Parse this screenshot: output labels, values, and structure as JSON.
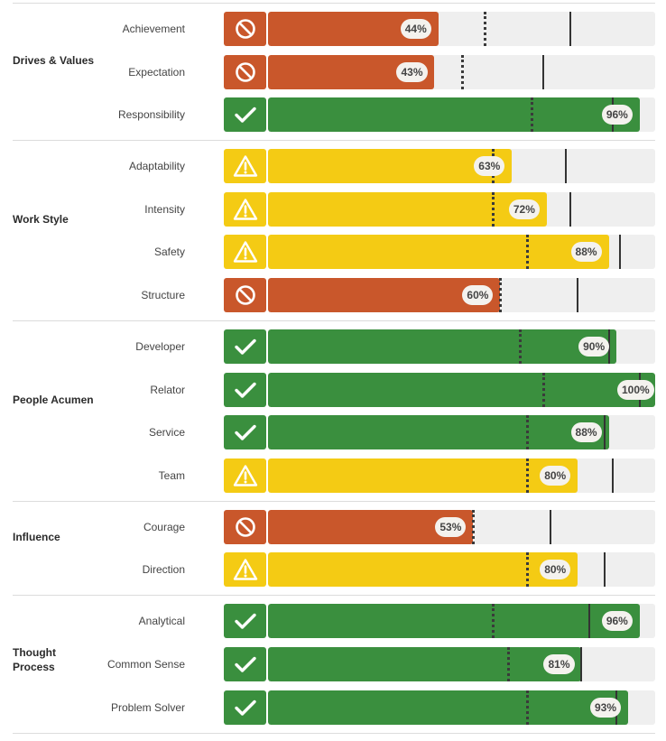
{
  "colors": {
    "fail": "#c9572b",
    "caution": "#f4cb14",
    "pass": "#3a8f3e",
    "track": "#efefef",
    "marker": "#333333"
  },
  "chart_data": {
    "type": "bar",
    "orientation": "horizontal",
    "xlim": [
      0,
      100
    ],
    "value_unit": "%",
    "groups": [
      {
        "title": "Drives & Values",
        "rows": [
          {
            "label": "Achievement",
            "value": 44,
            "display": "44%",
            "status": "fail",
            "status_icon": "ban-icon",
            "dotted_marker": 56,
            "solid_marker": 78
          },
          {
            "label": "Expectation",
            "value": 43,
            "display": "43%",
            "status": "fail",
            "status_icon": "ban-icon",
            "dotted_marker": 50,
            "solid_marker": 71
          },
          {
            "label": "Responsibility",
            "value": 96,
            "display": "96%",
            "status": "pass",
            "status_icon": "check-icon",
            "dotted_marker": 68,
            "solid_marker": 89
          }
        ]
      },
      {
        "title": "Work Style",
        "rows": [
          {
            "label": "Adaptability",
            "value": 63,
            "display": "63%",
            "status": "caution",
            "status_icon": "warning-icon",
            "dotted_marker": 58,
            "solid_marker": 77
          },
          {
            "label": "Intensity",
            "value": 72,
            "display": "72%",
            "status": "caution",
            "status_icon": "warning-icon",
            "dotted_marker": 58,
            "solid_marker": 78
          },
          {
            "label": "Safety",
            "value": 88,
            "display": "88%",
            "status": "caution",
            "status_icon": "warning-icon",
            "dotted_marker": 67,
            "solid_marker": 91
          },
          {
            "label": "Structure",
            "value": 60,
            "display": "60%",
            "status": "fail",
            "status_icon": "ban-icon",
            "dotted_marker": 60,
            "solid_marker": 80
          }
        ]
      },
      {
        "title": "People Acumen",
        "rows": [
          {
            "label": "Developer",
            "value": 90,
            "display": "90%",
            "status": "pass",
            "status_icon": "check-icon",
            "dotted_marker": 65,
            "solid_marker": 88
          },
          {
            "label": "Relator",
            "value": 100,
            "display": "100%",
            "status": "pass",
            "status_icon": "check-icon",
            "dotted_marker": 71,
            "solid_marker": 96
          },
          {
            "label": "Service",
            "value": 88,
            "display": "88%",
            "status": "pass",
            "status_icon": "check-icon",
            "dotted_marker": 67,
            "solid_marker": 87
          },
          {
            "label": "Team",
            "value": 80,
            "display": "80%",
            "status": "caution",
            "status_icon": "warning-icon",
            "dotted_marker": 67,
            "solid_marker": 89
          }
        ]
      },
      {
        "title": "Influence",
        "rows": [
          {
            "label": "Courage",
            "value": 53,
            "display": "53%",
            "status": "fail",
            "status_icon": "ban-icon",
            "dotted_marker": 53,
            "solid_marker": 73
          },
          {
            "label": "Direction",
            "value": 80,
            "display": "80%",
            "status": "caution",
            "status_icon": "warning-icon",
            "dotted_marker": 67,
            "solid_marker": 87
          }
        ]
      },
      {
        "title": "Thought Process",
        "rows": [
          {
            "label": "Analytical",
            "value": 96,
            "display": "96%",
            "status": "pass",
            "status_icon": "check-icon",
            "dotted_marker": 58,
            "solid_marker": 83
          },
          {
            "label": "Common Sense",
            "value": 81,
            "display": "81%",
            "status": "pass",
            "status_icon": "check-icon",
            "dotted_marker": 62,
            "solid_marker": 81
          },
          {
            "label": "Problem Solver",
            "value": 93,
            "display": "93%",
            "status": "pass",
            "status_icon": "check-icon",
            "dotted_marker": 67,
            "solid_marker": 90
          }
        ]
      }
    ]
  }
}
